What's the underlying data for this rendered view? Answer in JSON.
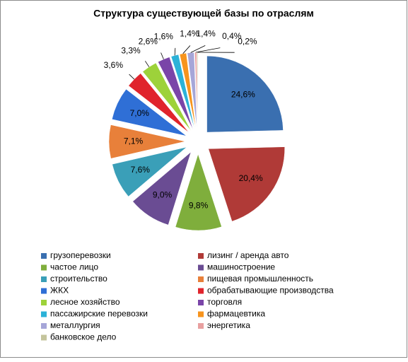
{
  "chart_data": {
    "type": "pie",
    "title": "Структура существующей базы по отраслям",
    "categories": [
      "грузоперевозки",
      "лизинг / аренда авто",
      "частое лицо",
      "машиностроение",
      "строительство",
      "пищевая промышленность",
      "ЖКХ",
      "обрабатывающие производства",
      "лесное хозяйство",
      "торговля",
      "пассажирские перевозки",
      "фармацевтика",
      "металлургия",
      "энергетика",
      "банковское дело"
    ],
    "values": [
      24.6,
      20.4,
      9.8,
      9.0,
      7.6,
      7.1,
      7.0,
      3.6,
      3.3,
      2.6,
      1.6,
      1.4,
      1.4,
      0.4,
      0.2
    ],
    "value_labels": [
      "24,6%",
      "20,4%",
      "9,8%",
      "9,0%",
      "7,6%",
      "7,1%",
      "7,0%",
      "3,6%",
      "3,3%",
      "2,6%",
      "1,6%",
      "1,4%",
      "1,4%",
      "0,4%",
      "0,2%"
    ],
    "colors": [
      "#3a6fb0",
      "#b03a37",
      "#7fae3c",
      "#6a4c93",
      "#3a9fb8",
      "#e8803a",
      "#2f6fd6",
      "#e0242c",
      "#9dd23a",
      "#7a45a8",
      "#2cb2d8",
      "#f7941d",
      "#a6a6d8",
      "#e8a0a0",
      "#c4c49c"
    ],
    "legend": "bottom"
  }
}
